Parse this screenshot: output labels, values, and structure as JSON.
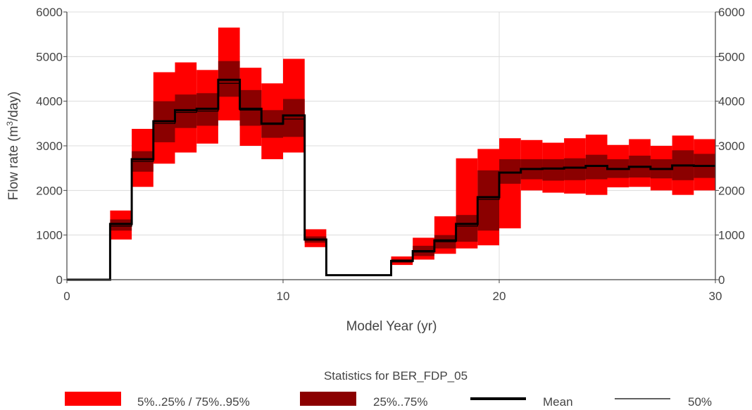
{
  "chart_data": {
    "type": "step",
    "xlabel": "Model Year (yr)",
    "ylabel_prefix": "Flow rate (m",
    "ylabel_sup": "3",
    "ylabel_suffix": "/day)",
    "xlim": [
      0,
      30
    ],
    "ylim": [
      0,
      6000
    ],
    "x_ticks": [
      "0",
      "10",
      "20",
      "30"
    ],
    "y_ticks": [
      "0",
      "1000",
      "2000",
      "3000",
      "4000",
      "5000",
      "6000"
    ],
    "grid": true,
    "legend_title": "Statistics for BER_FDP_05",
    "legend_placement": "bottom",
    "colors": {
      "outer": "#ff0000",
      "inner": "#8b0000",
      "mean": "#000000",
      "median": "#000000"
    },
    "series": [
      {
        "name": "5%..25% / 75%..95%",
        "kind": "outer_band"
      },
      {
        "name": "25%..75%",
        "kind": "inner_band"
      },
      {
        "name": "Mean",
        "kind": "mean_line"
      },
      {
        "name": "50%",
        "kind": "median_line"
      }
    ],
    "bins": [
      {
        "x0": 0,
        "x1": 2,
        "p5": 0,
        "p25": 0,
        "p75": 0,
        "p95": 0,
        "mean": 0,
        "median": 0
      },
      {
        "x0": 2,
        "x1": 3,
        "p5": 900,
        "p25": 1100,
        "p75": 1350,
        "p95": 1550,
        "mean": 1250,
        "median": 1200
      },
      {
        "x0": 3,
        "x1": 4,
        "p5": 2080,
        "p25": 2420,
        "p75": 2880,
        "p95": 3380,
        "mean": 2700,
        "median": 2650
      },
      {
        "x0": 4,
        "x1": 5,
        "p5": 2600,
        "p25": 3080,
        "p75": 4000,
        "p95": 4650,
        "mean": 3550,
        "median": 3500
      },
      {
        "x0": 5,
        "x1": 6,
        "p5": 2850,
        "p25": 3400,
        "p75": 4150,
        "p95": 4870,
        "mean": 3800,
        "median": 3750
      },
      {
        "x0": 6,
        "x1": 7,
        "p5": 3050,
        "p25": 3450,
        "p75": 4180,
        "p95": 4700,
        "mean": 3830,
        "median": 3780
      },
      {
        "x0": 7,
        "x1": 8,
        "p5": 3570,
        "p25": 4100,
        "p75": 4900,
        "p95": 5650,
        "mean": 4480,
        "median": 4400
      },
      {
        "x0": 8,
        "x1": 9,
        "p5": 3000,
        "p25": 3450,
        "p75": 4250,
        "p95": 4750,
        "mean": 3830,
        "median": 3800
      },
      {
        "x0": 9,
        "x1": 10,
        "p5": 2700,
        "p25": 3180,
        "p75": 3800,
        "p95": 4400,
        "mean": 3500,
        "median": 3480
      },
      {
        "x0": 10,
        "x1": 11,
        "p5": 2850,
        "p25": 3200,
        "p75": 4050,
        "p95": 4950,
        "mean": 3680,
        "median": 3600
      },
      {
        "x0": 11,
        "x1": 12,
        "p5": 730,
        "p25": 830,
        "p75": 970,
        "p95": 1130,
        "mean": 900,
        "median": 900
      },
      {
        "x0": 12,
        "x1": 15,
        "p5": 100,
        "p25": 100,
        "p75": 100,
        "p95": 100,
        "mean": 100,
        "median": 100
      },
      {
        "x0": 15,
        "x1": 16,
        "p5": 330,
        "p25": 380,
        "p75": 460,
        "p95": 520,
        "mean": 420,
        "median": 420
      },
      {
        "x0": 16,
        "x1": 17,
        "p5": 450,
        "p25": 530,
        "p75": 760,
        "p95": 940,
        "mean": 640,
        "median": 620
      },
      {
        "x0": 17,
        "x1": 18,
        "p5": 580,
        "p25": 700,
        "p75": 1000,
        "p95": 1420,
        "mean": 880,
        "median": 850
      },
      {
        "x0": 18,
        "x1": 19,
        "p5": 700,
        "p25": 850,
        "p75": 1450,
        "p95": 2720,
        "mean": 1250,
        "median": 1200
      },
      {
        "x0": 19,
        "x1": 20,
        "p5": 770,
        "p25": 1100,
        "p75": 2450,
        "p95": 2930,
        "mean": 1850,
        "median": 1800
      },
      {
        "x0": 20,
        "x1": 21,
        "p5": 1150,
        "p25": 2150,
        "p75": 2700,
        "p95": 3170,
        "mean": 2400,
        "median": 2400
      },
      {
        "x0": 21,
        "x1": 22,
        "p5": 2000,
        "p25": 2250,
        "p75": 2700,
        "p95": 3130,
        "mean": 2480,
        "median": 2480
      },
      {
        "x0": 22,
        "x1": 23,
        "p5": 1950,
        "p25": 2220,
        "p75": 2700,
        "p95": 3070,
        "mean": 2490,
        "median": 2490
      },
      {
        "x0": 23,
        "x1": 24,
        "p5": 1930,
        "p25": 2230,
        "p75": 2720,
        "p95": 3170,
        "mean": 2510,
        "median": 2500
      },
      {
        "x0": 24,
        "x1": 25,
        "p5": 1900,
        "p25": 2250,
        "p75": 2800,
        "p95": 3250,
        "mean": 2550,
        "median": 2540
      },
      {
        "x0": 25,
        "x1": 26,
        "p5": 2070,
        "p25": 2280,
        "p75": 2700,
        "p95": 3020,
        "mean": 2480,
        "median": 2480
      },
      {
        "x0": 26,
        "x1": 27,
        "p5": 2080,
        "p25": 2290,
        "p75": 2780,
        "p95": 3150,
        "mean": 2530,
        "median": 2530
      },
      {
        "x0": 27,
        "x1": 28,
        "p5": 2000,
        "p25": 2270,
        "p75": 2700,
        "p95": 3000,
        "mean": 2480,
        "median": 2480
      },
      {
        "x0": 28,
        "x1": 29,
        "p5": 1900,
        "p25": 2230,
        "p75": 2900,
        "p95": 3230,
        "mean": 2560,
        "median": 2550
      },
      {
        "x0": 29,
        "x1": 30,
        "p5": 2000,
        "p25": 2280,
        "p75": 2820,
        "p95": 3150,
        "mean": 2550,
        "median": 2550
      }
    ]
  }
}
